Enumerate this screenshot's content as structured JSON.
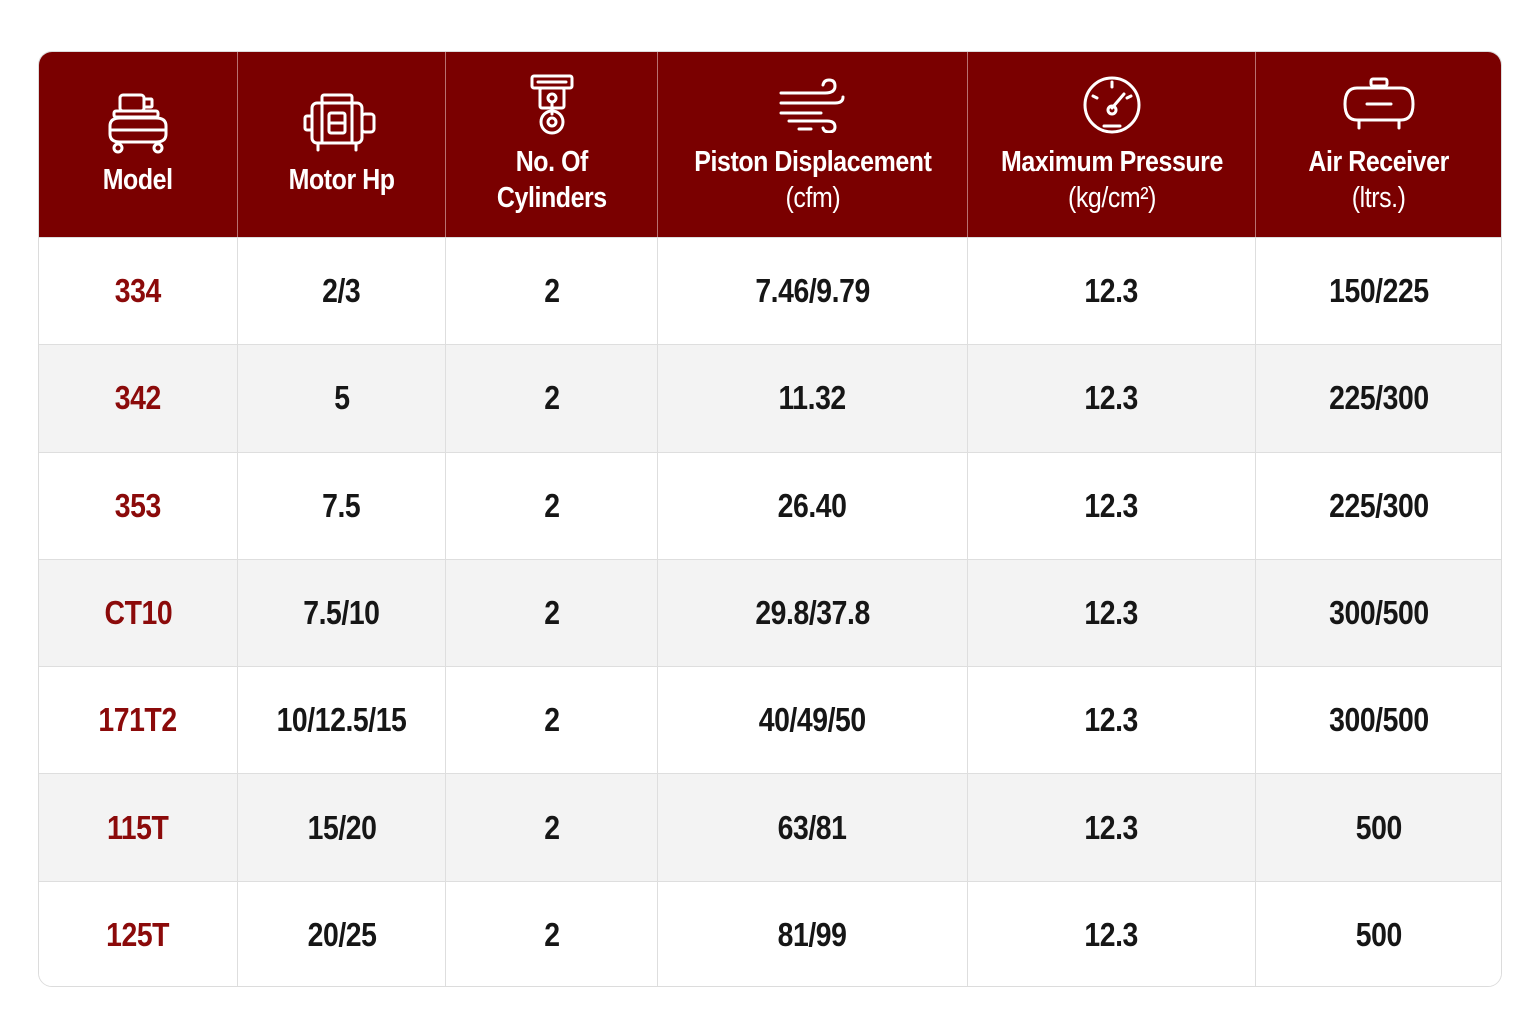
{
  "headers": [
    {
      "icon": "compressor-icon",
      "label": "Model",
      "sub": ""
    },
    {
      "icon": "motor-icon",
      "label": "Motor Hp",
      "sub": ""
    },
    {
      "icon": "cylinder-icon",
      "label": "No. Of",
      "sub": "Cylinders"
    },
    {
      "icon": "airflow-icon",
      "label": "Piston Displacement",
      "sub": "(cfm)"
    },
    {
      "icon": "pressure-gauge-icon",
      "label": "Maximum Pressure",
      "sub": "(kg/cm²)"
    },
    {
      "icon": "air-tank-icon",
      "label": "Air Receiver",
      "sub": "(ltrs.)"
    }
  ],
  "rows": [
    [
      "334",
      "2/3",
      "2",
      "7.46/9.79",
      "12.3",
      "150/225"
    ],
    [
      "342",
      "5",
      "2",
      "11.32",
      "12.3",
      "225/300"
    ],
    [
      "353",
      "7.5",
      "2",
      "26.40",
      "12.3",
      "225/300"
    ],
    [
      "CT10",
      "7.5/10",
      "2",
      "29.8/37.8",
      "12.3",
      "300/500"
    ],
    [
      "171T2",
      "10/12.5/15",
      "2",
      "40/49/50",
      "12.3",
      "300/500"
    ],
    [
      "115T",
      "15/20",
      "2",
      "63/81",
      "12.3",
      "500"
    ],
    [
      "125T",
      "20/25",
      "2",
      "81/99",
      "12.3",
      "500"
    ]
  ],
  "colors": {
    "header_bg": "#7a0000",
    "model_text": "#8b0a0a",
    "stripe": "#f3f3f3"
  }
}
